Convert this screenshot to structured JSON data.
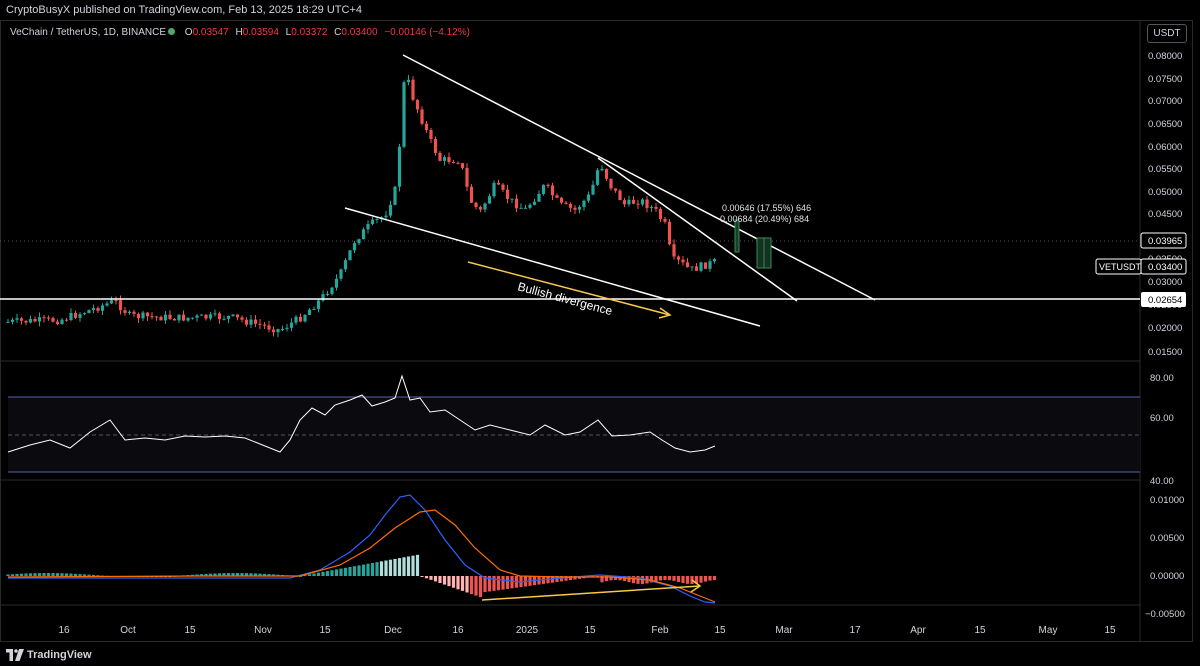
{
  "header": {
    "published_line": "CryptoBusyX published on TradingView.com, Feb 13, 2025 18:29 UTC+4"
  },
  "legend": {
    "symbol": "VeChain / TetherUS, 1D, BINANCE",
    "open_label": "O",
    "open": "0.03547",
    "high_label": "H",
    "high": "0.03594",
    "low_label": "L",
    "low": "0.03372",
    "close_label": "C",
    "close": "0.03400",
    "change": "−0.00146 (−4.12%)"
  },
  "unit_button": "USDT",
  "price_axis": {
    "ticks": [
      "0.08000",
      "0.07500",
      "0.07000",
      "0.06500",
      "0.06000",
      "0.05500",
      "0.05000",
      "0.04500",
      "0.03500",
      "0.03000",
      "0.02500",
      "0.02000",
      "0.01500"
    ],
    "label_target": "0.03965",
    "label_symbol": "VETUSDT",
    "label_last": "0.03400",
    "label_support": "0.02654"
  },
  "rsi_axis": {
    "ticks": [
      "80.00",
      "60.00",
      "40.00"
    ]
  },
  "macd_axis": {
    "ticks": [
      "0.01000",
      "0.00500",
      "0.00000",
      "−0.00500"
    ]
  },
  "time_axis": {
    "ticks": [
      "16",
      "Oct",
      "15",
      "Nov",
      "15",
      "Dec",
      "16",
      "2025",
      "15",
      "Feb",
      "15",
      "Mar",
      "17",
      "Apr",
      "15",
      "May",
      "15"
    ]
  },
  "annotations": {
    "divergence": "Bullish divergence",
    "measure_1": "0.00646 (17.55%) 646",
    "measure_2": "0.00684 (20.49%) 684"
  },
  "colors": {
    "up": "#26a69a",
    "down": "#ef5350",
    "line": "#ffffff",
    "arrow": "#f7c948",
    "macd": "#2962ff",
    "signal": "#ff6d00"
  },
  "footer": {
    "brand": "TradingView"
  }
}
